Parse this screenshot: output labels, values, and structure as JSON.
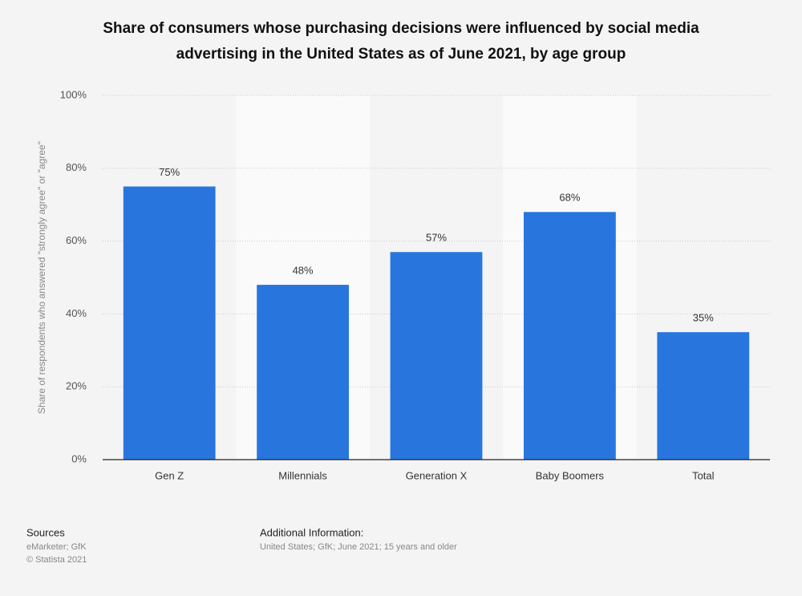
{
  "chart_data": {
    "type": "bar",
    "title": [
      "Share of consumers whose purchasing decisions were influenced by social media",
      "advertising in the United States as of June 2021, by age group"
    ],
    "y_label": "Share of respondents who answered \"strongly agree\" or \"agree\"",
    "categories": [
      "Gen Z",
      "Millennials",
      "Generation X",
      "Baby Boomers",
      "Total"
    ],
    "values": [
      75,
      48,
      57,
      68,
      35
    ],
    "value_labels": [
      "75%",
      "48%",
      "57%",
      "68%",
      "35%"
    ],
    "color": "#2876dd",
    "ylim": [
      0,
      100
    ],
    "yticks": [
      {
        "value": 0,
        "label": "0%"
      },
      {
        "value": 20,
        "label": "20%"
      },
      {
        "value": 40,
        "label": "40%"
      },
      {
        "value": 60,
        "label": "60%"
      },
      {
        "value": 80,
        "label": "80%"
      },
      {
        "value": 100,
        "label": "100%"
      }
    ],
    "grid": true
  },
  "footer": {
    "sources_title": "Sources",
    "sources": [
      "eMarketer; GfK",
      "© Statista 2021"
    ],
    "info_title": "Additional Information:",
    "info": "United States; GfK; June 2021; 15 years and older"
  }
}
